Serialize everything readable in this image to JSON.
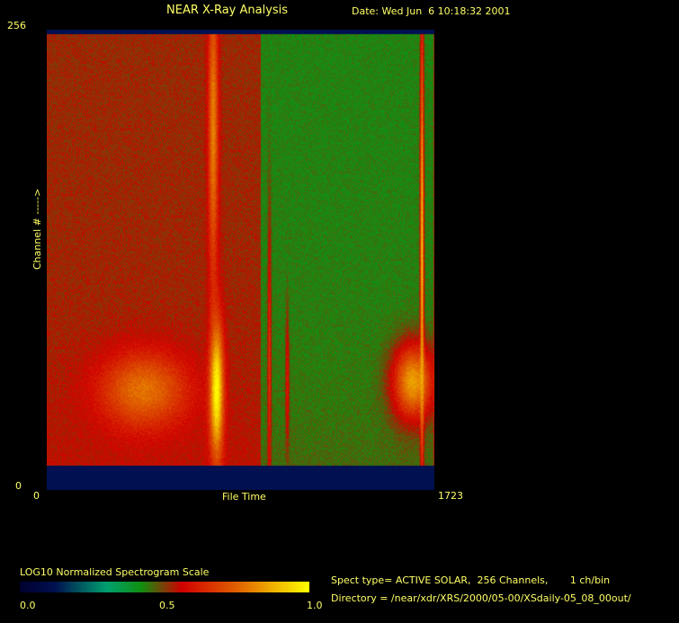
{
  "header": {
    "title": "NEAR X-Ray Analysis",
    "date": "Date: Wed Jun  6 10:18:32 2001"
  },
  "chart_data": {
    "type": "heatmap",
    "xlabel": "File Time",
    "ylabel": "Channel # ----->",
    "xlim": [
      0,
      1723
    ],
    "ylim": [
      0,
      256
    ],
    "x_tick_labels": [
      "0",
      "1723"
    ],
    "y_tick_labels": [
      "0",
      "256"
    ],
    "background_levels": [
      {
        "file_time_range": [
          0,
          950
        ],
        "value": 0.52
      },
      {
        "file_time_range": [
          950,
          1723
        ],
        "value": 0.43
      }
    ],
    "features": [
      {
        "file_time": 430,
        "time_width": 190,
        "channel": 45,
        "channel_width": 22,
        "value": 0.78
      },
      {
        "file_time": 755,
        "time_width": 30,
        "channel": 45,
        "channel_width": 40,
        "value": 1.0
      },
      {
        "file_time": 740,
        "time_width": 22,
        "channel": 200,
        "channel_width": 90,
        "value": 0.8
      },
      {
        "file_time": 990,
        "time_width": 8,
        "channel": 60,
        "channel_width": 90,
        "value": 0.66
      },
      {
        "file_time": 1070,
        "time_width": 8,
        "channel": 50,
        "channel_width": 40,
        "value": 0.62
      },
      {
        "file_time": 1630,
        "time_width": 90,
        "channel": 50,
        "channel_width": 22,
        "value": 0.85
      },
      {
        "file_time": 1670,
        "time_width": 8,
        "channel": 130,
        "channel_width": 140,
        "value": 0.9
      }
    ],
    "colorbar": {
      "title": "LOG10 Normalized Spectrogram Scale",
      "tick_labels": [
        "0.0",
        "0.5",
        "1.0"
      ],
      "stops": [
        {
          "v": 0.0,
          "color": "#000030"
        },
        {
          "v": 0.12,
          "color": "#001050"
        },
        {
          "v": 0.3,
          "color": "#00a070"
        },
        {
          "v": 0.42,
          "color": "#10900f"
        },
        {
          "v": 0.56,
          "color": "#d00000"
        },
        {
          "v": 0.75,
          "color": "#e06000"
        },
        {
          "v": 1.0,
          "color": "#ffff00"
        }
      ]
    }
  },
  "info": {
    "spect_type": "Spect type= ACTIVE SOLAR,  256 Channels,       1 ch/bin",
    "directory": "Directory = /near/xdr/XRS/2000/05-00/XSdaily-05_08_00out/"
  }
}
